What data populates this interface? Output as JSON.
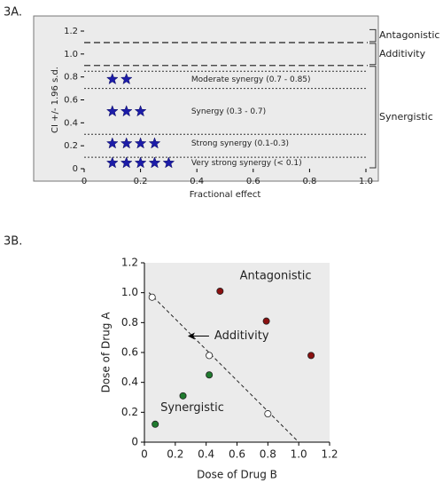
{
  "chart_data": [
    {
      "type": "scatter",
      "panel_label": "3A.",
      "xlabel": "Fractional effect",
      "ylabel": "CI +/- 1.96 s.d.",
      "xlim": [
        0,
        1
      ],
      "xticks": [
        0,
        0.2,
        0.4,
        0.6,
        0.8,
        {
          "value": 1,
          "label": "1.0"
        }
      ],
      "ylim": [
        0,
        1.2
      ],
      "yticks": [
        0,
        0.2,
        0.4,
        0.6,
        0.8,
        {
          "value": 1,
          "label": "1.0"
        },
        1.2
      ],
      "marker": "star",
      "series": [
        {
          "color": "#1c1ca8",
          "x": [
            0.1,
            0.15
          ],
          "y": [
            0.78,
            0.78
          ]
        },
        {
          "color": "#1c1ca8",
          "x": [
            0.1,
            0.15,
            0.2
          ],
          "y": [
            0.5,
            0.5,
            0.5
          ]
        },
        {
          "color": "#1c1ca8",
          "x": [
            0.1,
            0.15,
            0.2,
            0.25
          ],
          "y": [
            0.22,
            0.22,
            0.22,
            0.22
          ]
        },
        {
          "color": "#1c1ca8",
          "x": [
            0.1,
            0.15,
            0.2,
            0.25,
            0.3
          ],
          "y": [
            0.05,
            0.05,
            0.05,
            0.05,
            0.05
          ]
        }
      ],
      "ref_lines": [
        {
          "y": 1.1,
          "style": "dashed"
        },
        {
          "y": 0.9,
          "style": "dashed"
        },
        {
          "y": 0.85,
          "style": "dotted"
        },
        {
          "y": 0.7,
          "style": "dotted"
        },
        {
          "y": 0.3,
          "style": "dotted"
        },
        {
          "y": 0.1,
          "style": "dotted"
        }
      ],
      "annotations": [
        {
          "text": "Moderate synergy (0.7 - 0.85)",
          "x": 0.38,
          "y": 0.78
        },
        {
          "text": "Synergy (0.3 - 0.7)",
          "x": 0.38,
          "y": 0.5
        },
        {
          "text": "Strong synergy (0.1-0.3)",
          "x": 0.38,
          "y": 0.22
        },
        {
          "text": "Very strong synergy (< 0.1)",
          "x": 0.38,
          "y": 0.05
        }
      ],
      "brackets": [
        {
          "label": "Antagonistic",
          "range": [
            1.1,
            1.22
          ]
        },
        {
          "label": "Additivity",
          "range": [
            0.9,
            1.1
          ]
        },
        {
          "label": "Synergistic",
          "range": [
            0,
            0.9
          ]
        }
      ]
    },
    {
      "type": "scatter",
      "panel_label": "3B.",
      "xlabel": "Dose of Drug B",
      "ylabel": "Dose of Drug A",
      "xlim": [
        0,
        1.2
      ],
      "xticks": [
        0,
        0.2,
        0.4,
        0.6,
        0.8,
        {
          "value": 1,
          "label": "1.0"
        },
        1.2
      ],
      "ylim": [
        0,
        1.2
      ],
      "yticks": [
        0,
        0.2,
        0.4,
        0.6,
        0.8,
        {
          "value": 1,
          "label": "1.0"
        },
        1.2
      ],
      "marker": "circle",
      "series": [
        {
          "color": "#8b1010",
          "x": [
            0.49,
            0.79,
            1.08
          ],
          "y": [
            1.01,
            0.81,
            0.58
          ]
        },
        {
          "color": "#1f7a2e",
          "x": [
            0.07,
            0.25,
            0.42
          ],
          "y": [
            0.12,
            0.31,
            0.45
          ]
        },
        {
          "color": "#ffffff",
          "x": [
            0.05,
            0.42,
            0.8
          ],
          "y": [
            0.97,
            0.58,
            0.19
          ]
        }
      ],
      "lines": [
        {
          "x": [
            0.03,
            1
          ],
          "y": [
            1,
            0
          ],
          "style": "dashed"
        }
      ],
      "annotations": [
        {
          "text": "Antagonistic",
          "x": 0.85,
          "y": 1.11
        },
        {
          "text": "Additivity",
          "x": 0.63,
          "y": 0.71,
          "arrow": true
        },
        {
          "text": "Synergistic",
          "x": 0.31,
          "y": 0.23
        }
      ]
    }
  ]
}
